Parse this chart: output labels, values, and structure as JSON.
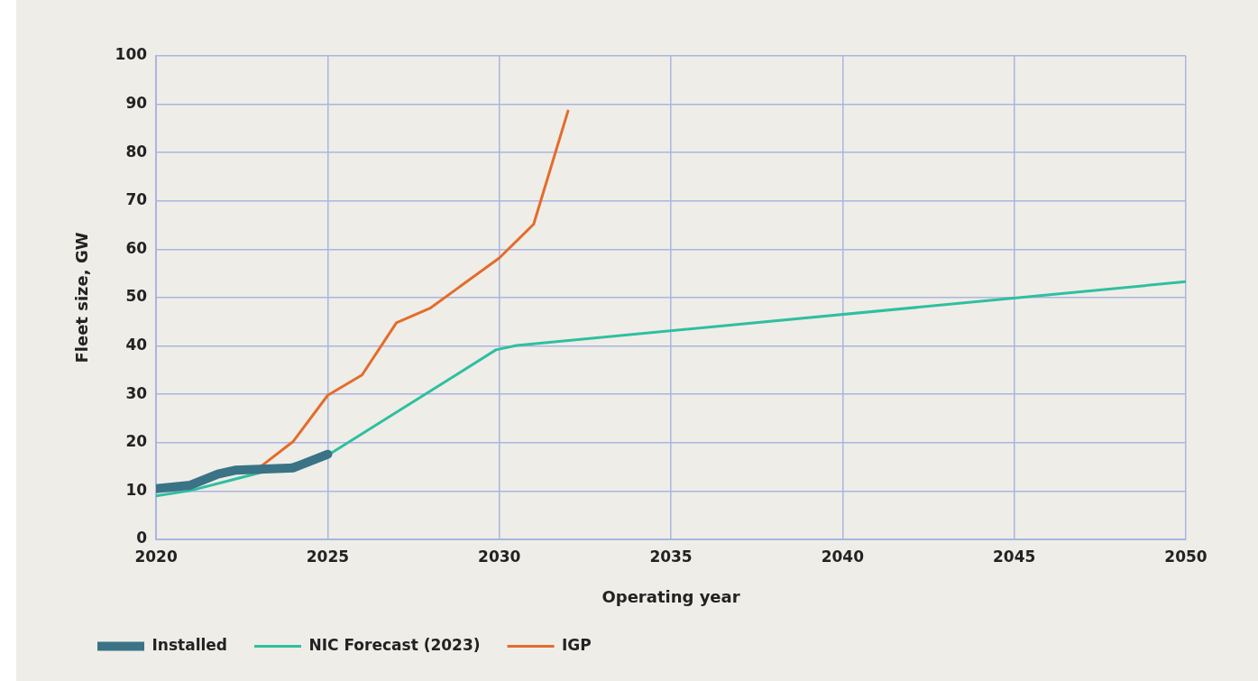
{
  "chart_data": {
    "type": "line",
    "xlabel": "Operating year",
    "ylabel": "Fleet size, GW",
    "xlim": [
      2020,
      2050
    ],
    "xticks": [
      2020,
      2025,
      2030,
      2035,
      2040,
      2045,
      2050
    ],
    "ylim": [
      0,
      100
    ],
    "yticks": [
      0,
      10,
      20,
      30,
      40,
      50,
      60,
      70,
      80,
      90,
      100
    ],
    "grid": true,
    "legend": "bottom left",
    "marker": "none",
    "line_style": "solid",
    "series": [
      {
        "name": "Installed",
        "color": "#3a7386",
        "x": [
          2020,
          2021,
          2021.8,
          2022.3,
          2023,
          2024,
          2025
        ],
        "values": [
          10.5,
          11.2,
          13.5,
          14.3,
          14.5,
          14.8,
          17.6
        ]
      },
      {
        "name": "NIC Forecast (2023)",
        "color": "#2fbfa0",
        "x": [
          2020,
          2021,
          2025,
          2029.9,
          2030.5,
          2050
        ],
        "values": [
          9,
          10.1,
          17.4,
          39.2,
          40.1,
          53.3
        ]
      },
      {
        "name": "IGP",
        "color": "#e46c2a",
        "x": [
          2023,
          2024,
          2025,
          2026,
          2027,
          2028,
          2030,
          2031,
          2032
        ],
        "values": [
          14.8,
          20.3,
          29.8,
          34.0,
          44.8,
          47.9,
          58.2,
          65.2,
          88.6
        ]
      }
    ]
  }
}
